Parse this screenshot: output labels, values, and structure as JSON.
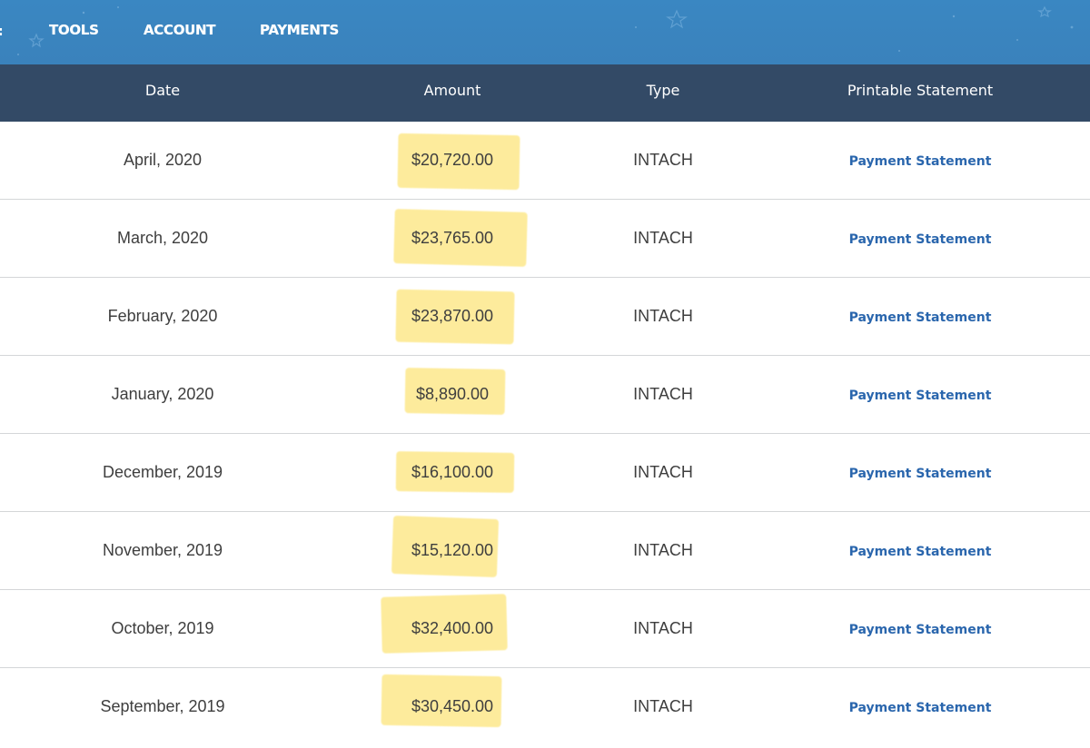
{
  "nav": {
    "edge_glyph": ":",
    "items": [
      "TOOLS",
      "ACCOUNT",
      "PAYMENTS"
    ]
  },
  "table": {
    "headers": [
      "Date",
      "Amount",
      "Type",
      "Printable Statement"
    ],
    "rows": [
      {
        "date": "April, 2020",
        "amount": "$20,720.00",
        "type": "INTACH",
        "statement": "Payment Statement"
      },
      {
        "date": "March, 2020",
        "amount": "$23,765.00",
        "type": "INTACH",
        "statement": "Payment Statement"
      },
      {
        "date": "February, 2020",
        "amount": "$23,870.00",
        "type": "INTACH",
        "statement": "Payment Statement"
      },
      {
        "date": "January, 2020",
        "amount": "$8,890.00",
        "type": "INTACH",
        "statement": "Payment Statement"
      },
      {
        "date": "December, 2019",
        "amount": "$16,100.00",
        "type": "INTACH",
        "statement": "Payment Statement"
      },
      {
        "date": "November, 2019",
        "amount": "$15,120.00",
        "type": "INTACH",
        "statement": "Payment Statement"
      },
      {
        "date": "October, 2019",
        "amount": "$32,400.00",
        "type": "INTACH",
        "statement": "Payment Statement"
      },
      {
        "date": "September, 2019",
        "amount": "$30,450.00",
        "type": "INTACH",
        "statement": "Payment Statement"
      }
    ]
  },
  "colors": {
    "nav_bg": "#3a87c2",
    "header_bg": "#334a66",
    "link": "#2a66ad",
    "highlight": "#fde98f",
    "row_divider": "#d4d6d8"
  }
}
